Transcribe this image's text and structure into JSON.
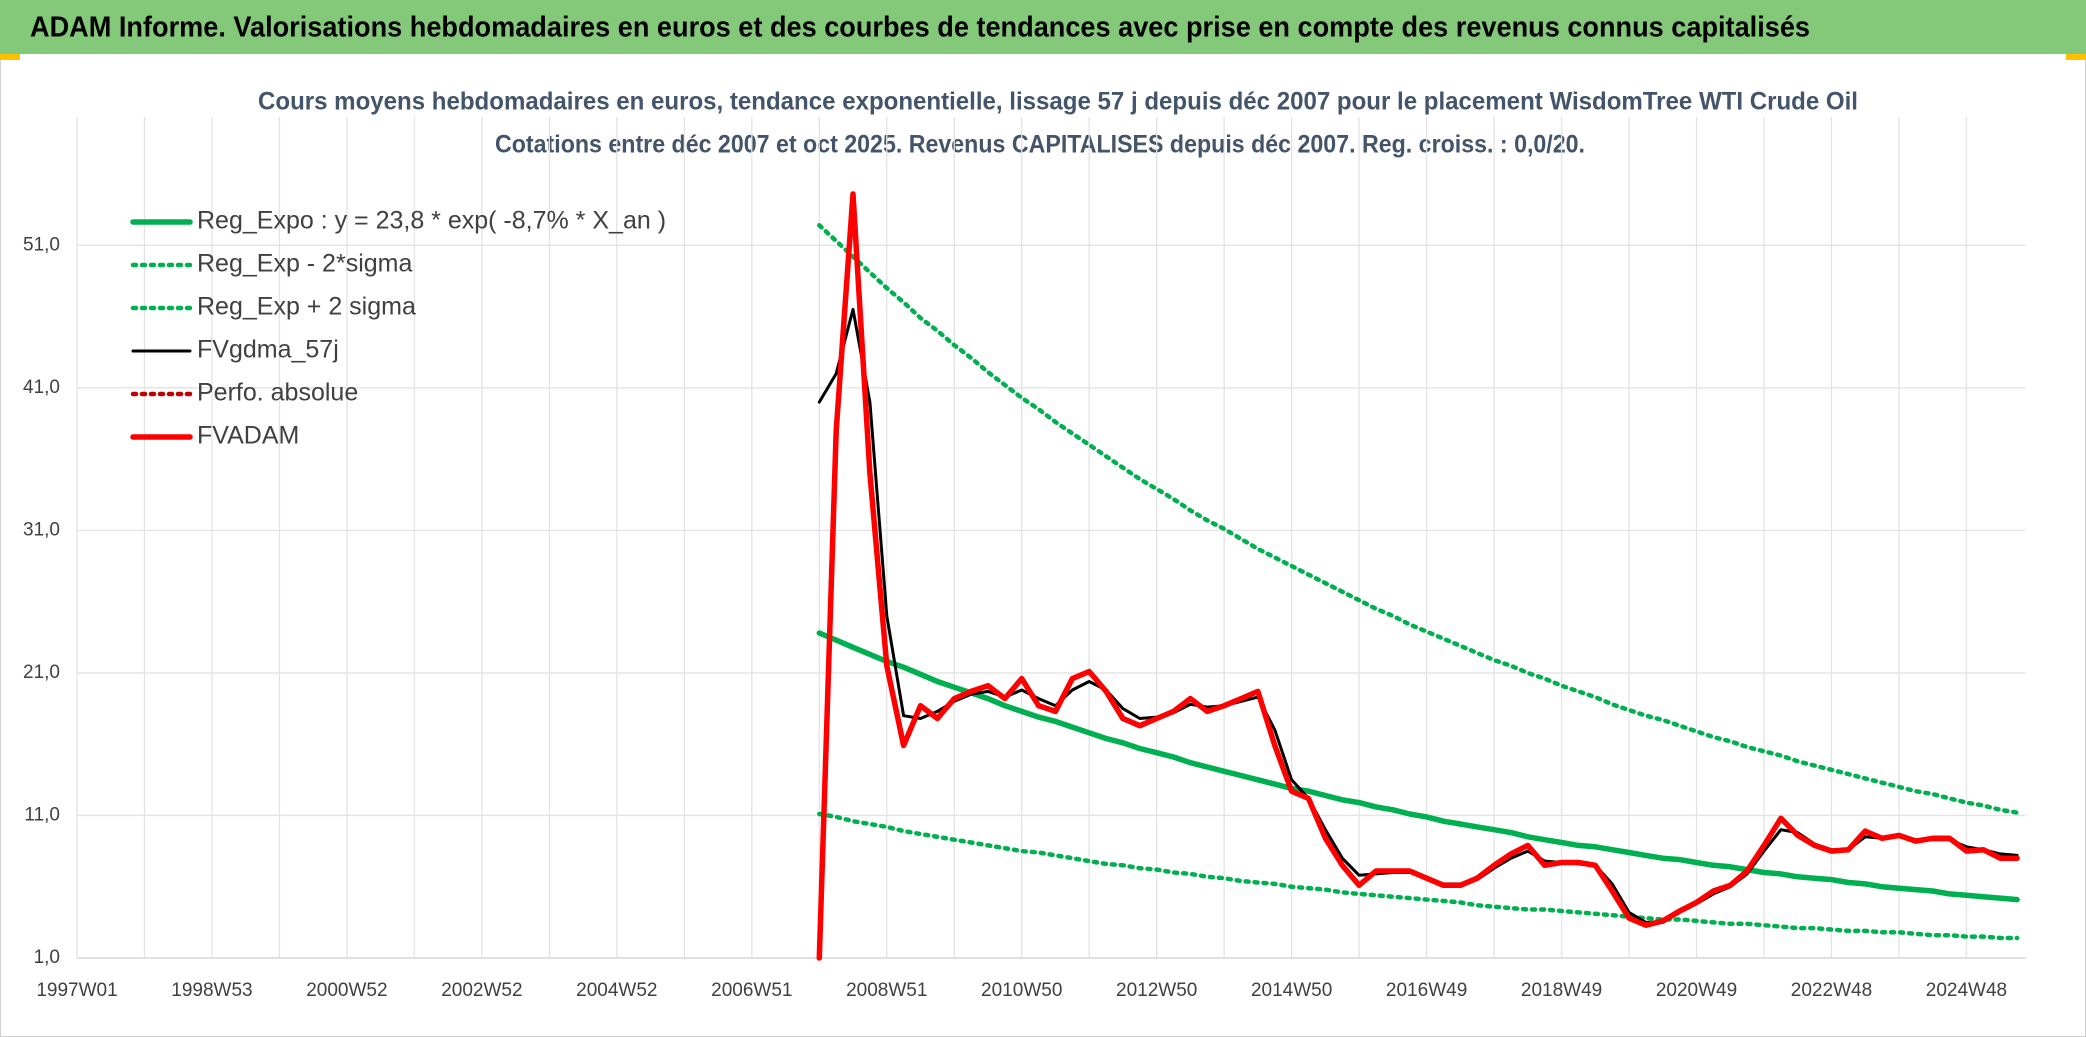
{
  "header": {
    "title": "ADAM Informe. Valorisations hebdomadaires en euros et des courbes de tendances avec prise en compte des revenus connus capitalisés"
  },
  "chart_data": {
    "type": "line",
    "title": "Cours moyens hebdomadaires en euros, tendance exponentielle, lissage 57 j depuis déc 2007 pour le placement WisdomTree WTI Crude Oil",
    "subtitle": "Cotations entre déc 2007 et oct 2025. Revenus CAPITALISES depuis déc 2007. Reg. croiss. : 0,0/20.",
    "categories": [
      "1997W01",
      null,
      null,
      null,
      null,
      null,
      null,
      null,
      "1998W53",
      null,
      null,
      null,
      null,
      null,
      null,
      null,
      "2000W52",
      null,
      null,
      null,
      null,
      null,
      null,
      null,
      "2002W52",
      null,
      null,
      null,
      null,
      null,
      null,
      null,
      "2004W52",
      null,
      null,
      null,
      null,
      null,
      null,
      null,
      "2006W51",
      null,
      null,
      null,
      null,
      null,
      null,
      null,
      "2008W51",
      null,
      null,
      null,
      null,
      null,
      null,
      null,
      "2010W50",
      null,
      null,
      null,
      null,
      null,
      null,
      null,
      "2012W50",
      null,
      null,
      null,
      null,
      null,
      null,
      null,
      "2014W50",
      null,
      null,
      null,
      null,
      null,
      null,
      null,
      "2016W49",
      null,
      null,
      null,
      null,
      null,
      null,
      null,
      "2018W49",
      null,
      null,
      null,
      null,
      null,
      null,
      null,
      "2020W49",
      null,
      null,
      null,
      null,
      null,
      null,
      null,
      "2022W48",
      null,
      null,
      null,
      null,
      null,
      null,
      null,
      "2024W48",
      null,
      null,
      null
    ],
    "ylim": [
      1,
      60
    ],
    "yticks": [
      {
        "value": 1,
        "label": "1,0"
      },
      {
        "value": 11,
        "label": "11,0"
      },
      {
        "value": 21,
        "label": "21,0"
      },
      {
        "value": 31,
        "label": "31,0"
      },
      {
        "value": 41,
        "label": "41,0"
      },
      {
        "value": 51,
        "label": "51,0"
      }
    ],
    "grid": true,
    "legend": "upper left",
    "series": [
      {
        "name": "Reg_Expo : y = 23,8 * exp( -8,7% *  X_an )",
        "color": "#00b050",
        "line_style": "solid",
        "values": [
          null,
          null,
          null,
          null,
          null,
          null,
          null,
          null,
          null,
          null,
          null,
          null,
          null,
          null,
          null,
          null,
          null,
          null,
          null,
          null,
          null,
          null,
          null,
          null,
          null,
          null,
          null,
          null,
          null,
          null,
          null,
          null,
          null,
          null,
          null,
          null,
          null,
          null,
          null,
          null,
          null,
          null,
          null,
          null,
          23.8,
          23.3,
          22.8,
          22.3,
          21.8,
          21.4,
          20.9,
          20.4,
          20.0,
          19.6,
          19.2,
          18.7,
          18.3,
          17.9,
          17.6,
          17.2,
          16.8,
          16.4,
          16.1,
          15.7,
          15.4,
          15.1,
          14.7,
          14.4,
          14.1,
          13.8,
          13.5,
          13.2,
          12.9,
          12.7,
          12.4,
          12.1,
          11.9,
          11.6,
          11.4,
          11.1,
          10.9,
          10.6,
          10.4,
          10.2,
          10.0,
          9.8,
          9.5,
          9.3,
          9.1,
          8.9,
          8.8,
          8.6,
          8.4,
          8.2,
          8.0,
          7.9,
          7.7,
          7.5,
          7.4,
          7.2,
          7.0,
          6.9,
          6.7,
          6.6,
          6.5,
          6.3,
          6.2,
          6.0,
          5.9,
          5.8,
          5.7,
          5.5,
          5.4,
          5.3,
          5.2,
          5.1
        ]
      },
      {
        "name": "Reg_Exp - 2*sigma",
        "color": "#00b050",
        "line_style": "dotted",
        "values": [
          null,
          null,
          null,
          null,
          null,
          null,
          null,
          null,
          null,
          null,
          null,
          null,
          null,
          null,
          null,
          null,
          null,
          null,
          null,
          null,
          null,
          null,
          null,
          null,
          null,
          null,
          null,
          null,
          null,
          null,
          null,
          null,
          null,
          null,
          null,
          null,
          null,
          null,
          null,
          null,
          null,
          null,
          null,
          null,
          11.1,
          10.9,
          10.6,
          10.4,
          10.2,
          9.9,
          9.7,
          9.5,
          9.3,
          9.1,
          8.9,
          8.7,
          8.5,
          8.4,
          8.2,
          8.0,
          7.8,
          7.6,
          7.5,
          7.3,
          7.2,
          7.0,
          6.9,
          6.7,
          6.6,
          6.4,
          6.3,
          6.2,
          6.0,
          5.9,
          5.8,
          5.6,
          5.5,
          5.4,
          5.3,
          5.2,
          5.1,
          5.0,
          4.9,
          4.7,
          4.6,
          4.5,
          4.4,
          4.4,
          4.3,
          4.2,
          4.1,
          4.0,
          3.9,
          3.8,
          3.7,
          3.7,
          3.6,
          3.5,
          3.4,
          3.4,
          3.3,
          3.2,
          3.1,
          3.1,
          3.0,
          2.9,
          2.9,
          2.8,
          2.8,
          2.7,
          2.6,
          2.6,
          2.5,
          2.5,
          2.4,
          2.4
        ]
      },
      {
        "name": "Reg_Exp + 2 sigma",
        "color": "#00b050",
        "line_style": "dotted",
        "values": [
          null,
          null,
          null,
          null,
          null,
          null,
          null,
          null,
          null,
          null,
          null,
          null,
          null,
          null,
          null,
          null,
          null,
          null,
          null,
          null,
          null,
          null,
          null,
          null,
          null,
          null,
          null,
          null,
          null,
          null,
          null,
          null,
          null,
          null,
          null,
          null,
          null,
          null,
          null,
          null,
          null,
          null,
          null,
          null,
          52.4,
          51.3,
          50.2,
          49.1,
          48.0,
          47.0,
          45.9,
          45.0,
          44.0,
          43.1,
          42.1,
          41.2,
          40.3,
          39.5,
          38.6,
          37.8,
          37.0,
          36.2,
          35.4,
          34.6,
          33.9,
          33.2,
          32.4,
          31.7,
          31.1,
          30.4,
          29.7,
          29.1,
          28.5,
          27.9,
          27.3,
          26.7,
          26.1,
          25.5,
          25.0,
          24.4,
          23.9,
          23.4,
          22.9,
          22.4,
          21.9,
          21.5,
          21.0,
          20.6,
          20.1,
          19.7,
          19.3,
          18.8,
          18.4,
          18.0,
          17.7,
          17.3,
          16.9,
          16.5,
          16.2,
          15.8,
          15.5,
          15.2,
          14.8,
          14.5,
          14.2,
          13.9,
          13.6,
          13.3,
          13.0,
          12.7,
          12.5,
          12.2,
          11.9,
          11.7,
          11.4,
          11.2
        ]
      },
      {
        "name": "FVgdma_57j",
        "color": "#000000",
        "line_style": "solid",
        "values": [
          null,
          null,
          null,
          null,
          null,
          null,
          null,
          null,
          null,
          null,
          null,
          null,
          null,
          null,
          null,
          null,
          null,
          null,
          null,
          null,
          null,
          null,
          null,
          null,
          null,
          null,
          null,
          null,
          null,
          null,
          null,
          null,
          null,
          null,
          null,
          null,
          null,
          null,
          null,
          null,
          null,
          null,
          null,
          null,
          40.0,
          42.0,
          46.5,
          40.0,
          25.0,
          18.0,
          17.8,
          18.3,
          19.0,
          19.5,
          19.7,
          19.3,
          19.8,
          19.2,
          18.7,
          19.8,
          20.4,
          19.8,
          18.5,
          17.8,
          17.9,
          18.2,
          18.8,
          18.6,
          18.7,
          19.0,
          19.3,
          17.0,
          13.5,
          12.2,
          10.0,
          8.0,
          6.8,
          6.9,
          7.0,
          7.0,
          6.6,
          6.2,
          6.2,
          6.5,
          7.3,
          8.0,
          8.5,
          7.8,
          7.7,
          7.6,
          7.5,
          6.2,
          4.2,
          3.5,
          3.5,
          4.2,
          4.8,
          5.5,
          6.0,
          6.9,
          8.5,
          10.0,
          9.8,
          9.0,
          8.6,
          8.6,
          9.5,
          9.4,
          9.5,
          9.3,
          9.3,
          9.3,
          8.8,
          8.6,
          8.3,
          8.2
        ]
      },
      {
        "name": "Perfo. absolue",
        "color": "#c00000",
        "line_style": "dotted",
        "values": [
          null,
          null,
          null,
          null,
          null,
          null,
          null,
          null,
          null,
          null,
          null,
          null,
          null,
          null,
          null,
          null,
          null,
          null,
          null,
          null,
          null,
          null,
          null,
          null,
          null,
          null,
          null,
          null,
          null,
          null,
          null,
          null,
          null,
          null,
          null,
          null,
          null,
          null,
          null,
          null,
          null,
          null,
          null,
          null,
          1.0,
          38.0,
          54.6,
          35.0,
          21.5,
          15.9,
          18.7,
          17.8,
          19.2,
          19.7,
          20.1,
          19.2,
          20.6,
          18.7,
          18.3,
          20.6,
          21.1,
          19.7,
          17.8,
          17.3,
          17.8,
          18.3,
          19.2,
          18.3,
          18.7,
          19.2,
          19.7,
          15.9,
          12.7,
          12.2,
          9.4,
          7.5,
          6.1,
          7.1,
          7.1,
          7.1,
          6.6,
          6.1,
          6.1,
          6.6,
          7.5,
          8.3,
          8.9,
          7.5,
          7.7,
          7.7,
          7.5,
          5.7,
          3.8,
          3.3,
          3.6,
          4.3,
          4.9,
          5.7,
          6.1,
          7.1,
          8.9,
          10.8,
          9.6,
          8.9,
          8.5,
          8.6,
          9.9,
          9.4,
          9.6,
          9.2,
          9.4,
          9.4,
          8.5,
          8.6,
          8.0,
          8.0
        ]
      },
      {
        "name": "FVADAM",
        "color": "#ff0000",
        "line_style": "solid",
        "values": [
          null,
          null,
          null,
          null,
          null,
          null,
          null,
          null,
          null,
          null,
          null,
          null,
          null,
          null,
          null,
          null,
          null,
          null,
          null,
          null,
          null,
          null,
          null,
          null,
          null,
          null,
          null,
          null,
          null,
          null,
          null,
          null,
          null,
          null,
          null,
          null,
          null,
          null,
          null,
          null,
          null,
          null,
          null,
          null,
          1.0,
          38.0,
          54.6,
          35.0,
          21.5,
          15.9,
          18.7,
          17.8,
          19.2,
          19.7,
          20.1,
          19.2,
          20.6,
          18.7,
          18.3,
          20.6,
          21.1,
          19.7,
          17.8,
          17.3,
          17.8,
          18.3,
          19.2,
          18.3,
          18.7,
          19.2,
          19.7,
          15.9,
          12.7,
          12.2,
          9.4,
          7.5,
          6.1,
          7.1,
          7.1,
          7.1,
          6.6,
          6.1,
          6.1,
          6.6,
          7.5,
          8.3,
          8.9,
          7.5,
          7.7,
          7.7,
          7.5,
          5.7,
          3.8,
          3.3,
          3.6,
          4.3,
          4.9,
          5.7,
          6.1,
          7.1,
          8.9,
          10.8,
          9.6,
          8.9,
          8.5,
          8.6,
          9.9,
          9.4,
          9.6,
          9.2,
          9.4,
          9.4,
          8.5,
          8.6,
          8.0,
          8.0
        ]
      }
    ]
  }
}
